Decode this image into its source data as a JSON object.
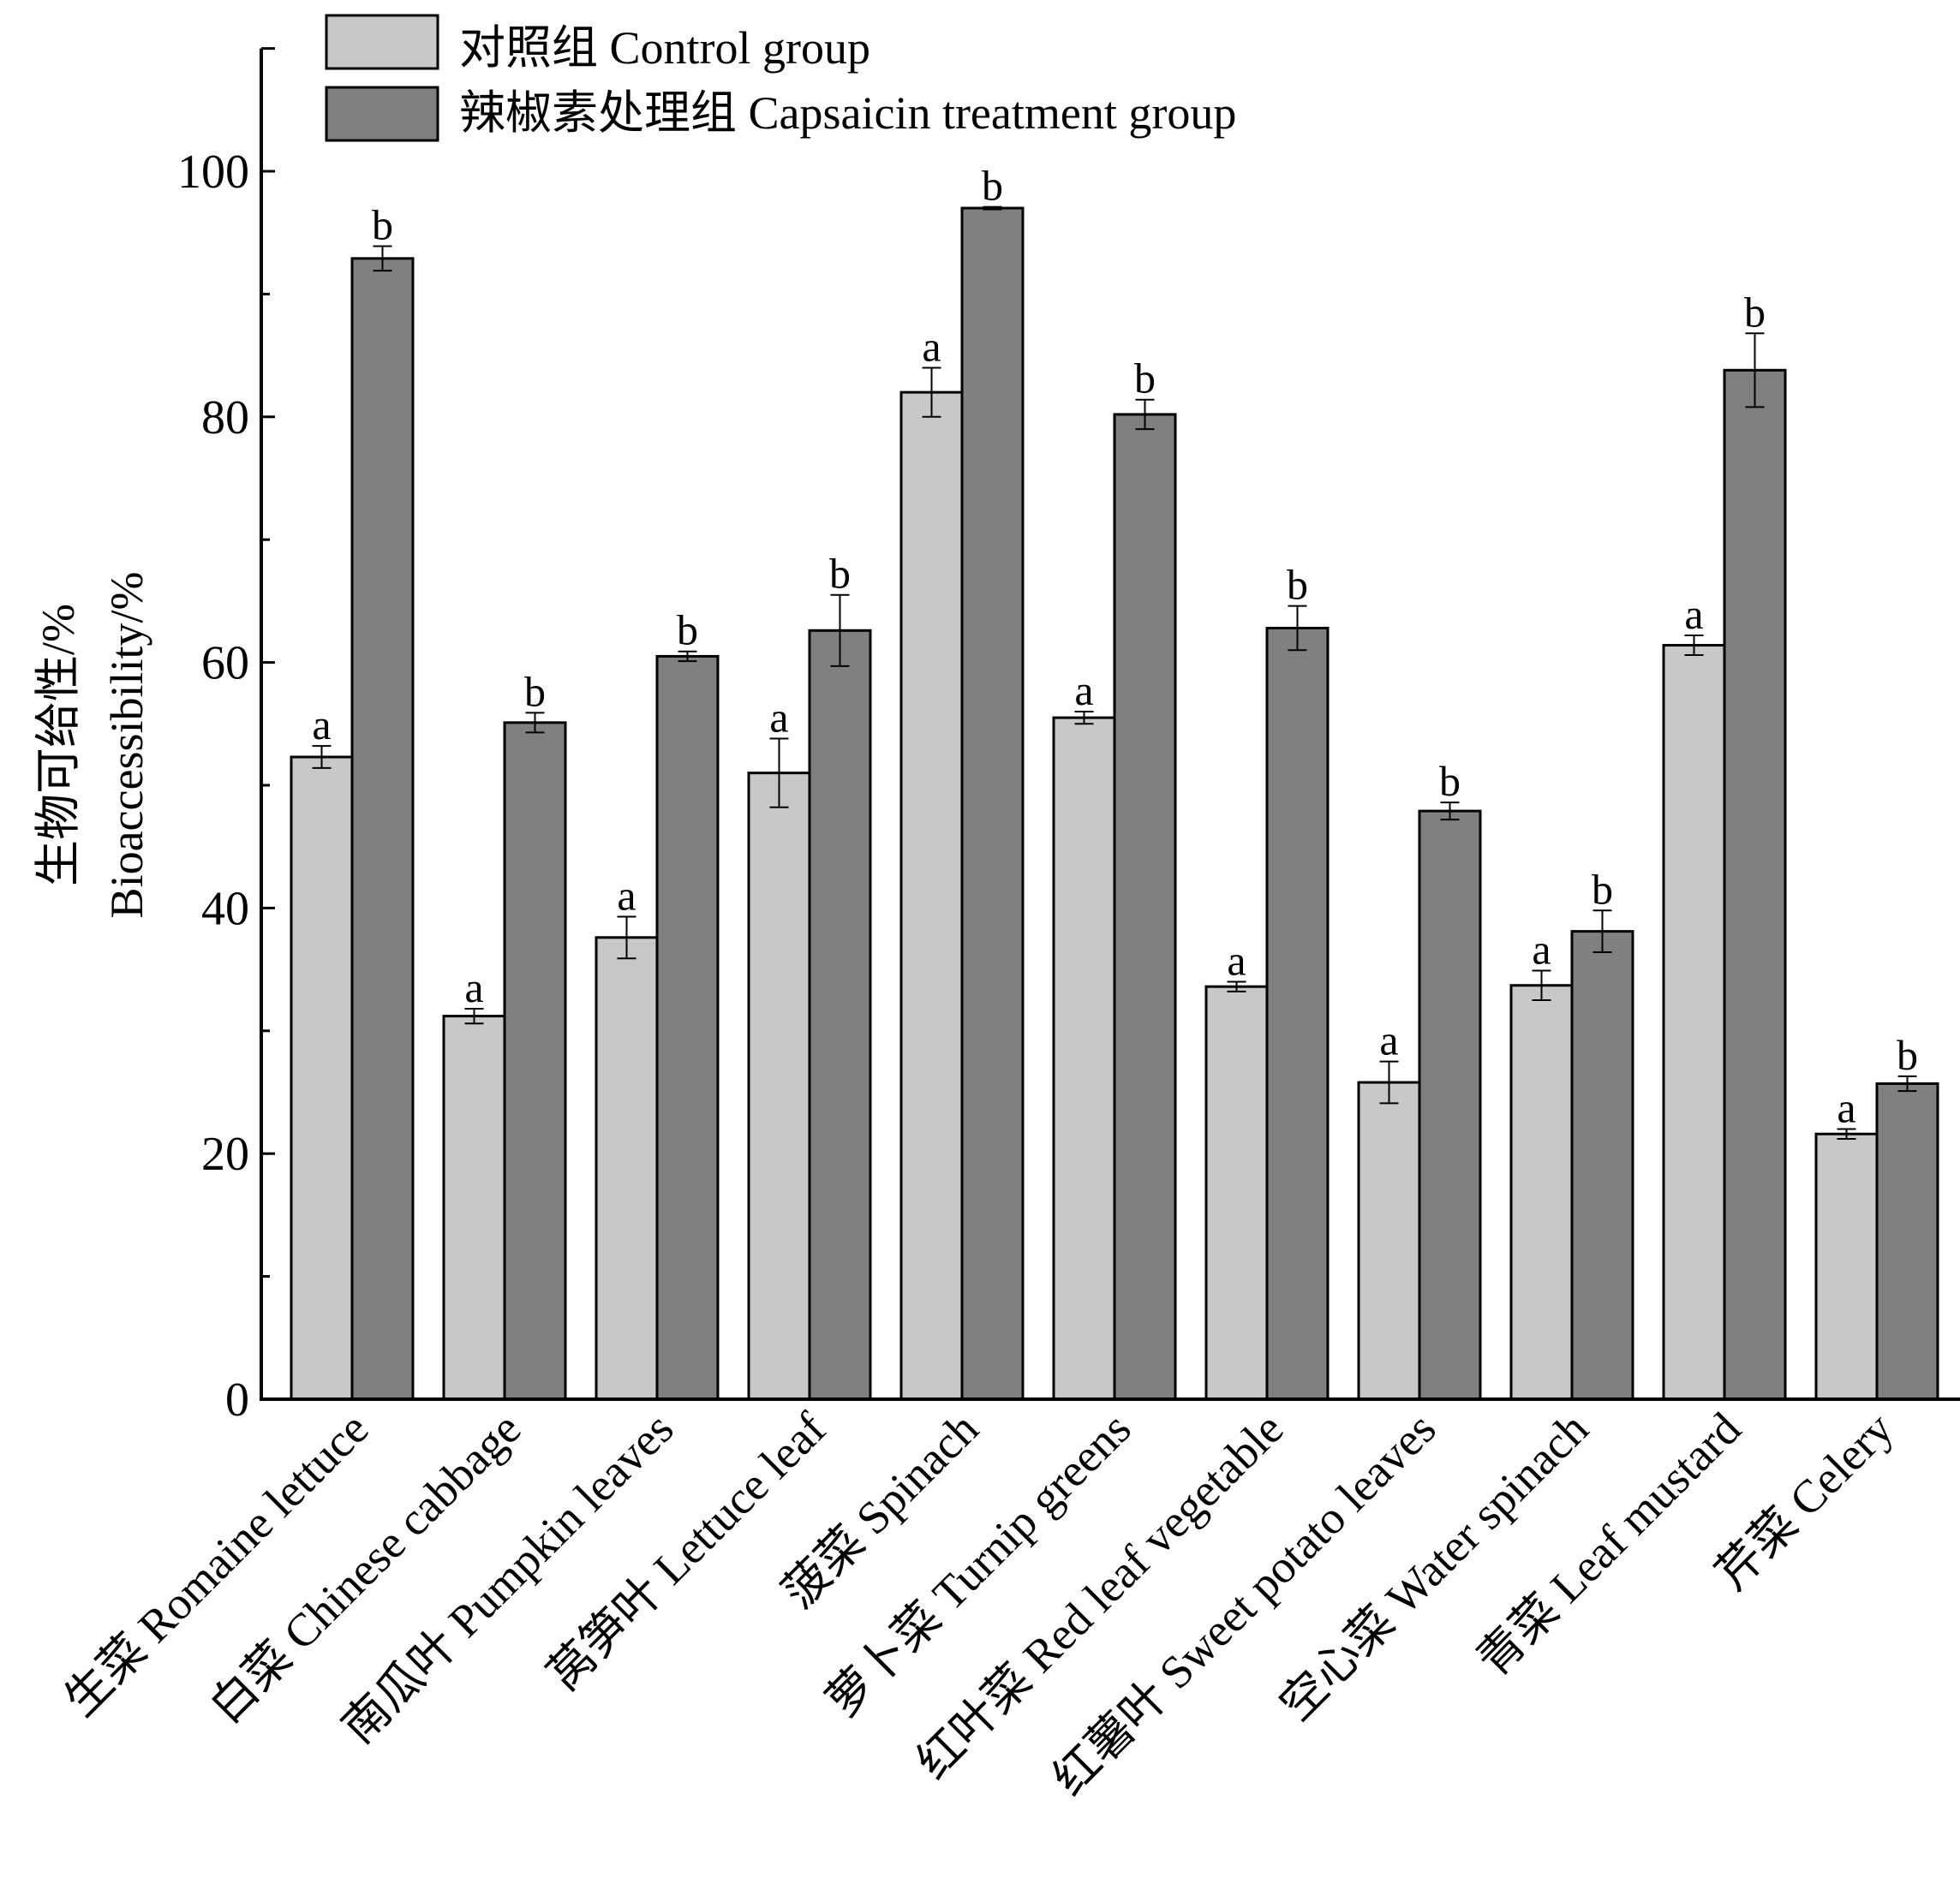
{
  "chart_data": {
    "type": "bar",
    "ylabel_zh": "生物可给性/%",
    "ylabel_en": "Bioaccessibility/%",
    "ylim": [
      0,
      110
    ],
    "yticks": [
      0,
      20,
      40,
      60,
      80,
      100
    ],
    "legend_position": "top-left",
    "categories": [
      "生菜 Romaine lettuce",
      "白菜 Chinese cabbage",
      "南瓜叶 Pumpkin leaves",
      "莴笋叶 Lettuce leaf",
      "菠菜 Spinach",
      "萝卜菜 Turnip greens",
      "红叶菜 Red leaf vegetable",
      "红薯叶 Sweet potato leaves",
      "空心菜 Water spinach",
      "青菜 Leaf mustard",
      "芹菜 Celery"
    ],
    "series": [
      {
        "name": "对照组 Control group",
        "color": "#c8c8c8",
        "values": [
          52.3,
          31.2,
          37.6,
          51.0,
          82.0,
          55.5,
          33.6,
          25.8,
          33.7,
          61.4,
          21.6
        ],
        "errors": [
          0.9,
          0.6,
          1.7,
          2.8,
          2.0,
          0.5,
          0.4,
          1.7,
          1.2,
          0.8,
          0.4
        ],
        "letters": [
          "a",
          "a",
          "a",
          "a",
          "a",
          "a",
          "a",
          "a",
          "a",
          "a",
          "a"
        ]
      },
      {
        "name": "辣椒素处理组 Capsaicin treatment group",
        "color": "#808080",
        "values": [
          92.9,
          55.1,
          60.5,
          62.6,
          97.0,
          80.2,
          62.8,
          47.9,
          38.1,
          83.8,
          25.7
        ],
        "errors": [
          1.0,
          0.8,
          0.4,
          2.9,
          0.1,
          1.2,
          1.8,
          0.7,
          1.7,
          3.0,
          0.6
        ],
        "letters": [
          "b",
          "b",
          "b",
          "b",
          "b",
          "b",
          "b",
          "b",
          "b",
          "b",
          "b"
        ]
      }
    ]
  }
}
